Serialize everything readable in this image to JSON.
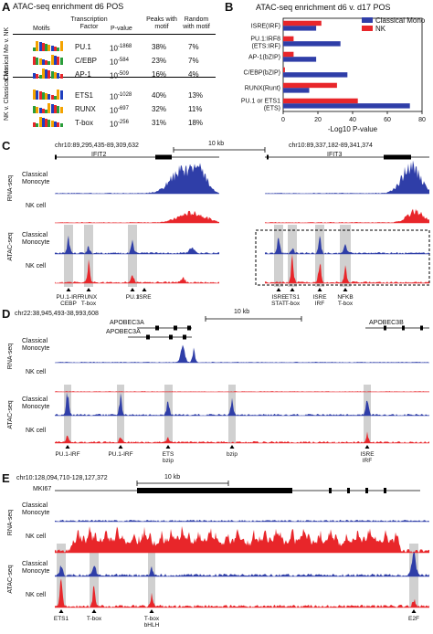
{
  "panelA": {
    "label": "A",
    "title": "ATAC-seq enrichment d6 POS",
    "headers": {
      "motifs": "Motifs",
      "tf": "Transcription Factor",
      "pval": "P-value",
      "peaks": "Peaks with motif",
      "random": "Random with motif"
    },
    "group1": "Classical Mo v. NK",
    "group2": "NK v. Classical Mo",
    "rows": [
      {
        "tf": "PU.1",
        "base": "10",
        "exp": "-1868",
        "peaks": "38%",
        "random": "7%"
      },
      {
        "tf": "C/EBP",
        "base": "10",
        "exp": "-584",
        "peaks": "23%",
        "random": "7%"
      },
      {
        "tf": "AP-1",
        "base": "10",
        "exp": "-509",
        "peaks": "16%",
        "random": "4%"
      },
      {
        "tf": "ETS1",
        "base": "10",
        "exp": "-1028",
        "peaks": "40%",
        "random": "13%"
      },
      {
        "tf": "RUNX",
        "base": "10",
        "exp": "-697",
        "peaks": "32%",
        "random": "11%"
      },
      {
        "tf": "T-box",
        "base": "10",
        "exp": "-256",
        "peaks": "31%",
        "random": "18%"
      }
    ]
  },
  "panelB": {
    "label": "B",
    "chart_data": {
      "type": "bar",
      "orientation": "horizontal",
      "title": "ATAC-seq enrichment d6 v. d17 POS",
      "xlabel": "-Log10 P-value",
      "xlim": [
        0,
        80
      ],
      "xticks": [
        "0",
        "20",
        "40",
        "60",
        "80"
      ],
      "categories": [
        "ISRE(IRF)",
        "PU.1:IRF8 (ETS:IRF)",
        "AP-1(bZIP)",
        "C/EBP(bZIP)",
        "RUNX(Runt)",
        "PU.1 or ETS1 (ETS)"
      ],
      "series": [
        {
          "name": "Classical Mono",
          "color": "#2f3ea8",
          "values": [
            19,
            33,
            19,
            37,
            15,
            73
          ]
        },
        {
          "name": "NK",
          "color": "#e8262a",
          "values": [
            22,
            6,
            6,
            1,
            31,
            43
          ]
        }
      ],
      "legend": "top-right"
    }
  },
  "panelC": {
    "label": "C",
    "left_coord": "chr10:89,295,435-89,309,632",
    "right_coord": "chr10:89,337,182-89,341,374",
    "scale": "10 kb",
    "gene_left": "IFIT2",
    "gene_right": "IFIT3",
    "rna_label": "RNA-seq",
    "atac_label": "ATAC-seq",
    "track_classical": "Classical Monocyte",
    "track_nk": "NK cell",
    "annotations": [
      {
        "top": "PU.1-IRF",
        "bottom": "CEBP"
      },
      {
        "top": "RUNX",
        "bottom": "T-box"
      },
      {
        "top": "PU.1",
        "bottom": ""
      },
      {
        "top": "ISRE",
        "bottom": ""
      },
      {
        "top": "ISRE",
        "bottom": "STAT"
      },
      {
        "top": "ETS1",
        "bottom": "T-box"
      },
      {
        "top": "ISRE",
        "bottom": "IRF"
      },
      {
        "top": "NFKB",
        "bottom": "T-box"
      }
    ]
  },
  "panelD": {
    "label": "D",
    "coord": "chr22:38,945,493-38,993,608",
    "scale": "10 kb",
    "gene1": "APOBEC3A",
    "gene2": "APOBEC3B",
    "rna_label": "RNA-seq",
    "atac_label": "ATAC-seq",
    "track_classical": "Classical Monocyte",
    "track_nk": "NK cell",
    "annotations": [
      {
        "top": "PU.1-IRF",
        "bottom": ""
      },
      {
        "top": "PU.1-IRF",
        "bottom": ""
      },
      {
        "top": "ETS",
        "bottom": "bzip"
      },
      {
        "top": "bzip",
        "bottom": ""
      },
      {
        "top": "ISRE",
        "bottom": "IRF"
      }
    ]
  },
  "panelE": {
    "label": "E",
    "coord": "chr10:128,094,710-128,127,372",
    "scale": "10 kb",
    "gene": "MKI67",
    "rna_label": "RNA-seq",
    "atac_label": "ATAC-seq",
    "track_classical": "Classical Monocyte",
    "track_nk": "NK cell",
    "annotations": [
      {
        "top": "ETS1",
        "bottom": ""
      },
      {
        "top": "T-box",
        "bottom": ""
      },
      {
        "top": "T-box",
        "bottom": "bHLH"
      },
      {
        "top": "E2F",
        "bottom": ""
      }
    ]
  },
  "colors": {
    "mono": "#2f3ea8",
    "nk": "#e8262a",
    "highlight": "#d0d0d0"
  }
}
